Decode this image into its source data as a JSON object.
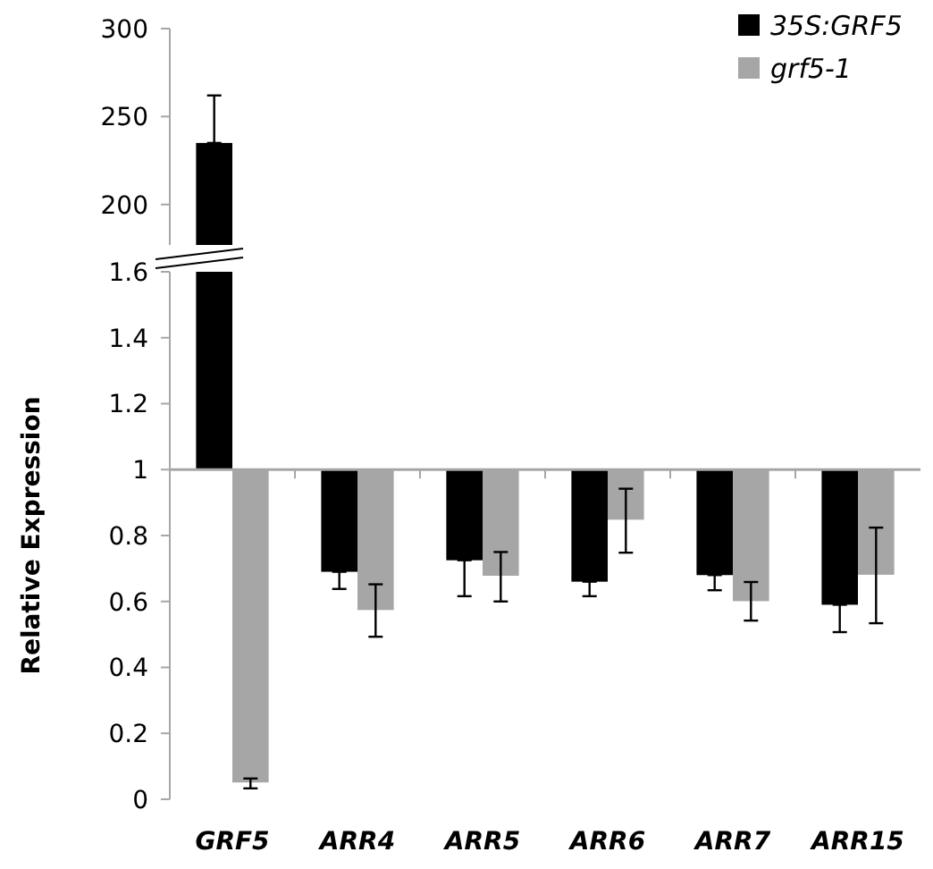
{
  "chart_data": [
    {
      "type": "bar",
      "categories": [
        null
      ],
      "tick_labels": "y",
      "series": [
        {
          "color": "#000000",
          "values": [
            235
          ],
          "errors": [
            [
              235,
              262
            ]
          ]
        }
      ],
      "ylim": [
        177,
        300
      ],
      "yticks": [
        200,
        250,
        300
      ]
    },
    {
      "type": "bar",
      "ylabel": "Relative Expression",
      "categories": [
        "GRF5",
        "ARR4",
        "ARR5",
        "ARR6",
        "ARR7",
        "ARR15"
      ],
      "legend": "top right",
      "series": [
        {
          "name": "35S:GRF5",
          "color": "#000000",
          "base": [
            1,
            1,
            1,
            1,
            1,
            1
          ],
          "values": [
            0.6,
            -0.31,
            -0.275,
            -0.34,
            -0.32,
            -0.41
          ],
          "errors": [
            null,
            [
              0.638,
              0.69
            ],
            [
              0.616,
              0.725
            ],
            [
              0.616,
              0.66
            ],
            [
              0.634,
              0.68
            ],
            [
              0.507,
              0.59
            ]
          ]
        },
        {
          "name": "grf5-1",
          "color": "#a6a6a6",
          "base": [
            1,
            1,
            1,
            1,
            1,
            1
          ],
          "values": [
            -0.949,
            -0.426,
            -0.322,
            -0.152,
            -0.399,
            -0.319
          ],
          "errors": [
            [
              0.033,
              0.063
            ],
            [
              0.493,
              0.652
            ],
            [
              0.6,
              0.75
            ],
            [
              0.748,
              0.942
            ],
            [
              0.542,
              0.659
            ],
            [
              0.534,
              0.824
            ]
          ]
        }
      ],
      "ylim": [
        0,
        1.6
      ],
      "yticks": [
        0,
        0.2,
        0.4,
        0.6,
        0.8,
        1,
        1.2,
        1.4,
        1.6
      ]
    }
  ]
}
